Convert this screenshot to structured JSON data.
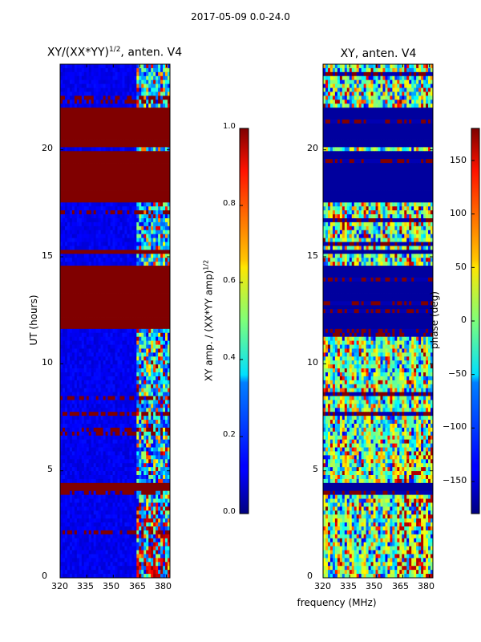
{
  "suptitle": "2017-05-09 0.0-24.0",
  "left_panel": {
    "title": "XY/(XX*YY)",
    "title_sup": "1/2",
    "title_suffix": ", anten. V4",
    "ylabel": "UT (hours)",
    "yticks": [
      "0",
      "5",
      "10",
      "15",
      "20"
    ],
    "xticks": [
      "320",
      "335",
      "350",
      "365",
      "380"
    ]
  },
  "right_panel": {
    "title": "XY, anten. V4",
    "yticks": [
      "0",
      "5",
      "10",
      "15",
      "20"
    ],
    "xticks": [
      "320",
      "335",
      "350",
      "365",
      "380"
    ]
  },
  "xlabel": "frequency (MHz)",
  "colorbar_amp": {
    "label": "XY amp. / (XX*YY amp)",
    "label_sup": "1/2",
    "ticks": [
      "0.0",
      "0.2",
      "0.4",
      "0.6",
      "0.8",
      "1.0"
    ]
  },
  "colorbar_phase": {
    "label": "phase (deg)",
    "ticks": [
      "150",
      "100",
      "50",
      "0",
      "−50",
      "−100",
      "−150"
    ]
  },
  "chart_data": [
    {
      "type": "heatmap",
      "title": "XY/(XX*YY)^1/2, anten. V4",
      "xlabel": "frequency (MHz)",
      "ylabel": "UT (hours)",
      "xlim": [
        320,
        382
      ],
      "ylim": [
        0,
        24
      ],
      "colormap": "jet",
      "value_range": [
        0.0,
        1.0
      ],
      "saturated_time_blocks_hours": [
        [
          4.05,
          4.35
        ],
        [
          11.6,
          14.6
        ],
        [
          15.1,
          15.35
        ],
        [
          17.5,
          19.9
        ],
        [
          20.2,
          21.9
        ]
      ],
      "active_band_mhz": [
        363,
        382
      ]
    },
    {
      "type": "heatmap",
      "title": "XY, anten. V4",
      "xlabel": "frequency (MHz)",
      "ylabel": "UT (hours)",
      "xlim": [
        320,
        382
      ],
      "ylim": [
        0,
        24
      ],
      "colormap": "jet",
      "value_range": [
        -180,
        180
      ],
      "flagged_time_blocks_hours": [
        [
          4.05,
          4.35
        ],
        [
          11.6,
          14.6
        ],
        [
          15.1,
          15.35
        ],
        [
          17.5,
          19.9
        ],
        [
          20.2,
          21.9
        ]
      ]
    }
  ]
}
